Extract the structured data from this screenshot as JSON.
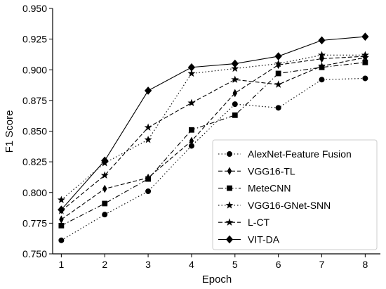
{
  "chart_data": {
    "type": "line",
    "title": "",
    "xlabel": "Epoch",
    "ylabel": "F1 Score",
    "x": [
      1,
      2,
      3,
      4,
      5,
      6,
      7,
      8
    ],
    "xticks": [
      "1",
      "2",
      "3",
      "4",
      "5",
      "6",
      "7",
      "8"
    ],
    "yticks": [
      "0.750",
      "0.775",
      "0.800",
      "0.825",
      "0.850",
      "0.875",
      "0.900",
      "0.925",
      "0.950"
    ],
    "xlim": [
      0.8,
      8.35
    ],
    "ylim": [
      0.75,
      0.95
    ],
    "grid": false,
    "legend_position": "bottom-right",
    "series": [
      {
        "name": "AlexNet-Feature Fusion",
        "linestyle": "dotted",
        "marker": "circle",
        "values": [
          0.761,
          0.782,
          0.801,
          0.838,
          0.872,
          0.869,
          0.892,
          0.893
        ]
      },
      {
        "name": "VGG16-TL",
        "linestyle": "dashed",
        "marker": "diamond-thin",
        "values": [
          0.778,
          0.803,
          0.812,
          0.842,
          0.881,
          0.904,
          0.909,
          0.911
        ]
      },
      {
        "name": "MeteCNN",
        "linestyle": "dashdot",
        "marker": "square",
        "values": [
          0.773,
          0.791,
          0.811,
          0.851,
          0.863,
          0.897,
          0.902,
          0.906
        ]
      },
      {
        "name": "VGG16-GNet-SNN",
        "linestyle": "dotted",
        "marker": "star",
        "values": [
          0.794,
          0.824,
          0.843,
          0.897,
          0.901,
          0.905,
          0.912,
          0.912
        ]
      },
      {
        "name": "L-CT",
        "linestyle": "dashed",
        "marker": "star",
        "values": [
          0.785,
          0.814,
          0.853,
          0.873,
          0.892,
          0.888,
          0.903,
          0.91
        ]
      },
      {
        "name": "VIT-DA",
        "linestyle": "solid",
        "marker": "diamond",
        "values": [
          0.786,
          0.826,
          0.883,
          0.902,
          0.905,
          0.911,
          0.924,
          0.927
        ]
      }
    ]
  }
}
